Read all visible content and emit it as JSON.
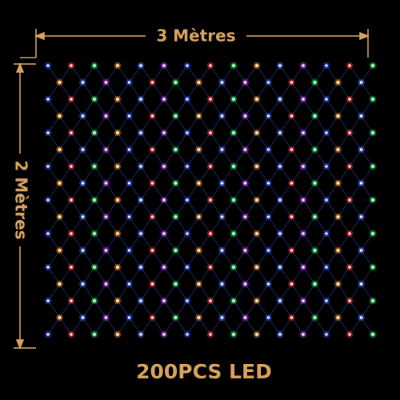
{
  "width_label": "3 Mètres",
  "height_label": "2 Mètres",
  "caption": "200PCS LED"
}
